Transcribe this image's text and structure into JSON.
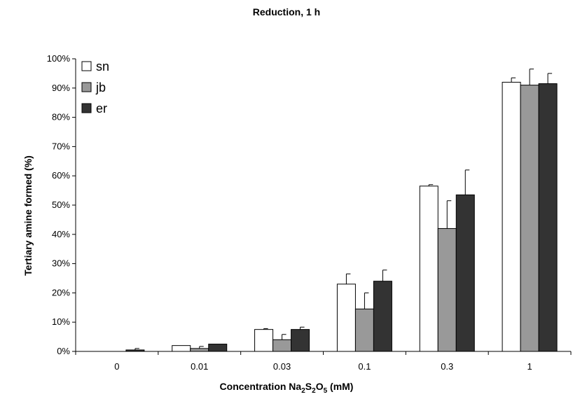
{
  "chart_data": {
    "type": "bar",
    "title": "Reduction, 1 h",
    "xlabel_parts": [
      "Concentration Na",
      "2",
      "S",
      "2",
      "O",
      "5",
      " (mM)"
    ],
    "ylabel": "Tertiary amine formed (%)",
    "categories": [
      "0",
      "0.01",
      "0.03",
      "0.1",
      "0.3",
      "1"
    ],
    "yticks": [
      "0%",
      "10%",
      "20%",
      "30%",
      "40%",
      "50%",
      "60%",
      "70%",
      "80%",
      "90%",
      "100%"
    ],
    "ylim": [
      0,
      100
    ],
    "grid": false,
    "legend_position": "top-left",
    "series": [
      {
        "name": "sn",
        "color": "#ffffff",
        "values": [
          0,
          2,
          7.5,
          23,
          56.5,
          92
        ],
        "errors": [
          0,
          0,
          0.3,
          3.5,
          0.5,
          1.5
        ]
      },
      {
        "name": "jb",
        "color": "#999999",
        "values": [
          0,
          1,
          4,
          14.5,
          42,
          91
        ],
        "errors": [
          0,
          0.7,
          1.8,
          5.5,
          9.5,
          5.5
        ]
      },
      {
        "name": "er",
        "color": "#333333",
        "values": [
          0.5,
          2.5,
          7.5,
          24,
          53.5,
          91.5
        ],
        "errors": [
          0.5,
          0,
          0.8,
          3.8,
          8.5,
          3.5
        ]
      }
    ]
  }
}
